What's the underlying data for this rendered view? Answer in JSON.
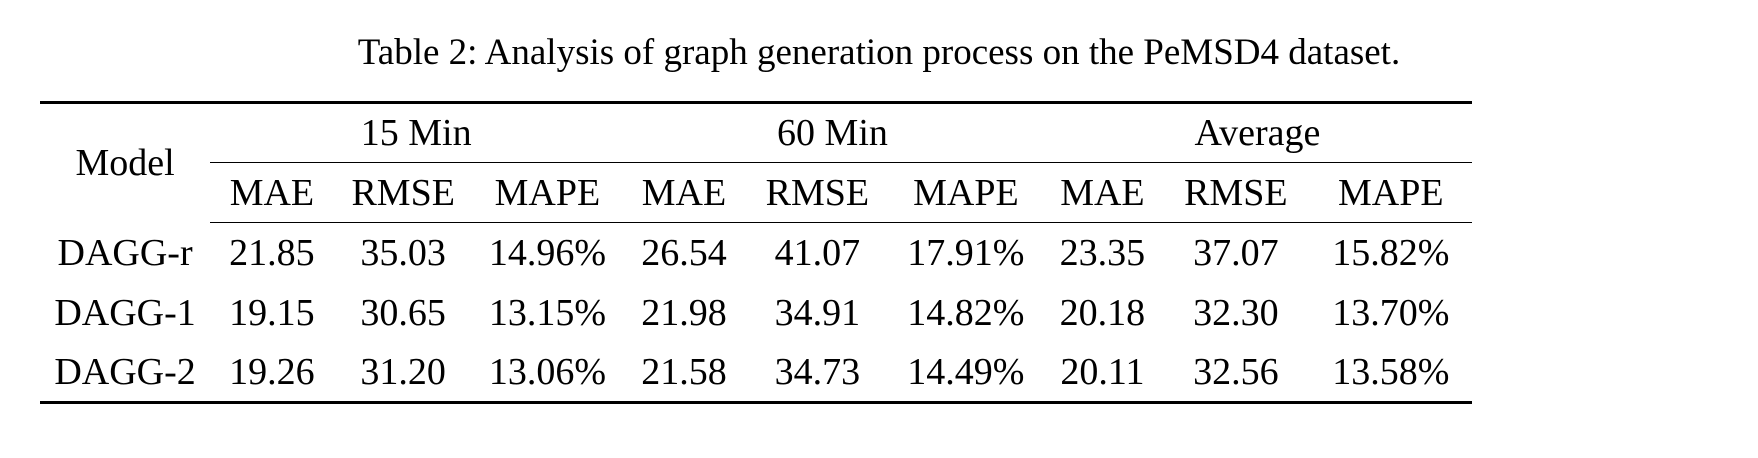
{
  "caption": "Table 2: Analysis of graph generation process on the PeMSD4 dataset.",
  "table": {
    "model_header": "Model",
    "groups": [
      "15 Min",
      "60 Min",
      "Average"
    ],
    "metrics": [
      "MAE",
      "RMSE",
      "MAPE"
    ],
    "rows": [
      {
        "model": "DAGG-r",
        "values": [
          "21.85",
          "35.03",
          "14.96%",
          "26.54",
          "41.07",
          "17.91%",
          "23.35",
          "37.07",
          "15.82%"
        ]
      },
      {
        "model": "DAGG-1",
        "values": [
          "19.15",
          "30.65",
          "13.15%",
          "21.98",
          "34.91",
          "14.82%",
          "20.18",
          "32.30",
          "13.70%"
        ]
      },
      {
        "model": "DAGG-2",
        "values": [
          "19.26",
          "31.20",
          "13.06%",
          "21.58",
          "34.73",
          "14.49%",
          "20.11",
          "32.56",
          "13.58%"
        ]
      }
    ]
  }
}
